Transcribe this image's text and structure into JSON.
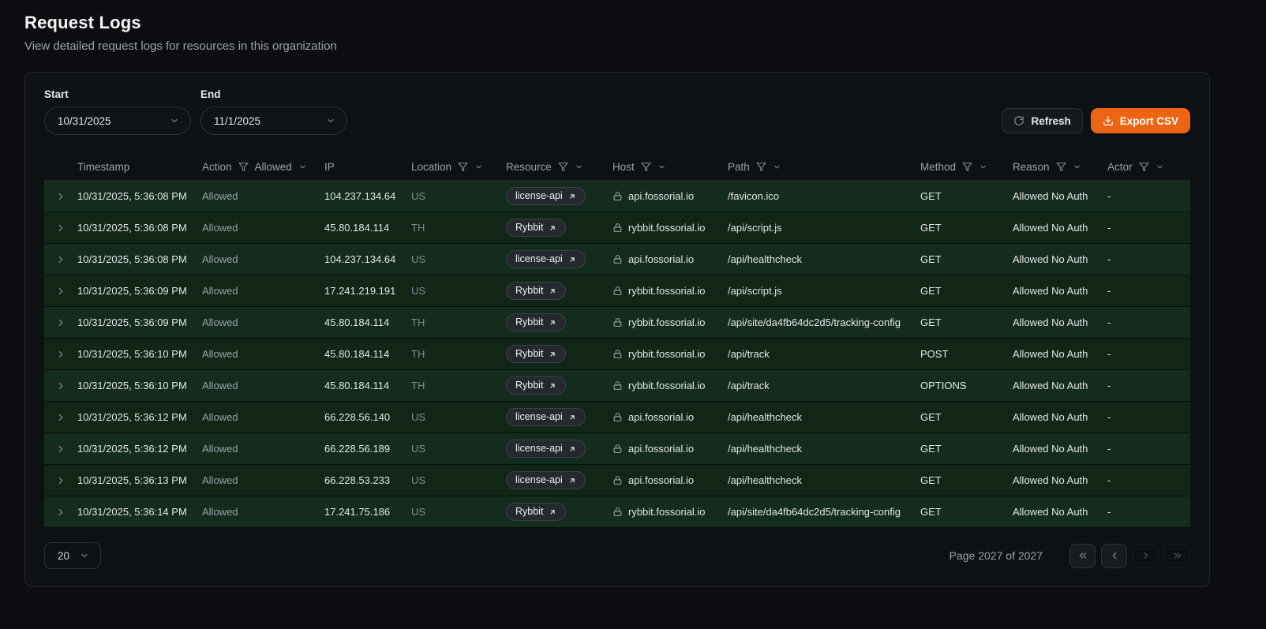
{
  "page": {
    "title": "Request Logs",
    "subtitle": "View detailed request logs for resources in this organization"
  },
  "toolbar": {
    "start_label": "Start",
    "start_value": "10/31/2025",
    "end_label": "End",
    "end_value": "11/1/2025",
    "refresh_label": "Refresh",
    "export_csv_label": "Export CSV"
  },
  "colors": {
    "accent_orange": "#ed6414",
    "allowed_row_green": "#142c1d"
  },
  "icons": {
    "expand_row": "chevron-right-icon",
    "host_prefix": "lock-icon",
    "resource_badge_suffix": "arrow-up-right-icon",
    "column_filter": "funnel-filter-icon"
  },
  "table": {
    "columns": [
      {
        "key": "timestamp",
        "label": "Timestamp",
        "filter": false
      },
      {
        "key": "action",
        "label": "Action",
        "filter": true,
        "filter_value": "Allowed"
      },
      {
        "key": "ip",
        "label": "IP",
        "filter": false
      },
      {
        "key": "location",
        "label": "Location",
        "filter": true
      },
      {
        "key": "resource",
        "label": "Resource",
        "filter": true
      },
      {
        "key": "host",
        "label": "Host",
        "filter": true
      },
      {
        "key": "path",
        "label": "Path",
        "filter": true
      },
      {
        "key": "method",
        "label": "Method",
        "filter": true
      },
      {
        "key": "reason",
        "label": "Reason",
        "filter": true
      },
      {
        "key": "actor",
        "label": "Actor",
        "filter": true
      }
    ],
    "rows": [
      {
        "timestamp": "10/31/2025, 5:36:08 PM",
        "action": "Allowed",
        "ip": "104.237.134.64",
        "location": "US",
        "resource": "license-api",
        "host": "api.fossorial.io",
        "path": "/favicon.ico",
        "method": "GET",
        "reason": "Allowed No Auth",
        "actor": "-"
      },
      {
        "timestamp": "10/31/2025, 5:36:08 PM",
        "action": "Allowed",
        "ip": "45.80.184.114",
        "location": "TH",
        "resource": "Rybbit",
        "host": "rybbit.fossorial.io",
        "path": "/api/script.js",
        "method": "GET",
        "reason": "Allowed No Auth",
        "actor": "-"
      },
      {
        "timestamp": "10/31/2025, 5:36:08 PM",
        "action": "Allowed",
        "ip": "104.237.134.64",
        "location": "US",
        "resource": "license-api",
        "host": "api.fossorial.io",
        "path": "/api/healthcheck",
        "method": "GET",
        "reason": "Allowed No Auth",
        "actor": "-"
      },
      {
        "timestamp": "10/31/2025, 5:36:09 PM",
        "action": "Allowed",
        "ip": "17.241.219.191",
        "location": "US",
        "resource": "Rybbit",
        "host": "rybbit.fossorial.io",
        "path": "/api/script.js",
        "method": "GET",
        "reason": "Allowed No Auth",
        "actor": "-"
      },
      {
        "timestamp": "10/31/2025, 5:36:09 PM",
        "action": "Allowed",
        "ip": "45.80.184.114",
        "location": "TH",
        "resource": "Rybbit",
        "host": "rybbit.fossorial.io",
        "path": "/api/site/da4fb64dc2d5/tracking-config",
        "method": "GET",
        "reason": "Allowed No Auth",
        "actor": "-"
      },
      {
        "timestamp": "10/31/2025, 5:36:10 PM",
        "action": "Allowed",
        "ip": "45.80.184.114",
        "location": "TH",
        "resource": "Rybbit",
        "host": "rybbit.fossorial.io",
        "path": "/api/track",
        "method": "POST",
        "reason": "Allowed No Auth",
        "actor": "-"
      },
      {
        "timestamp": "10/31/2025, 5:36:10 PM",
        "action": "Allowed",
        "ip": "45.80.184.114",
        "location": "TH",
        "resource": "Rybbit",
        "host": "rybbit.fossorial.io",
        "path": "/api/track",
        "method": "OPTIONS",
        "reason": "Allowed No Auth",
        "actor": "-"
      },
      {
        "timestamp": "10/31/2025, 5:36:12 PM",
        "action": "Allowed",
        "ip": "66.228.56.140",
        "location": "US",
        "resource": "license-api",
        "host": "api.fossorial.io",
        "path": "/api/healthcheck",
        "method": "GET",
        "reason": "Allowed No Auth",
        "actor": "-"
      },
      {
        "timestamp": "10/31/2025, 5:36:12 PM",
        "action": "Allowed",
        "ip": "66.228.56.189",
        "location": "US",
        "resource": "license-api",
        "host": "api.fossorial.io",
        "path": "/api/healthcheck",
        "method": "GET",
        "reason": "Allowed No Auth",
        "actor": "-"
      },
      {
        "timestamp": "10/31/2025, 5:36:13 PM",
        "action": "Allowed",
        "ip": "66.228.53.233",
        "location": "US",
        "resource": "license-api",
        "host": "api.fossorial.io",
        "path": "/api/healthcheck",
        "method": "GET",
        "reason": "Allowed No Auth",
        "actor": "-"
      },
      {
        "timestamp": "10/31/2025, 5:36:14 PM",
        "action": "Allowed",
        "ip": "17.241.75.186",
        "location": "US",
        "resource": "Rybbit",
        "host": "rybbit.fossorial.io",
        "path": "/api/site/da4fb64dc2d5/tracking-config",
        "method": "GET",
        "reason": "Allowed No Auth",
        "actor": "-"
      }
    ]
  },
  "footer": {
    "page_size": "20",
    "page_info": "Page 2027 of 2027"
  }
}
